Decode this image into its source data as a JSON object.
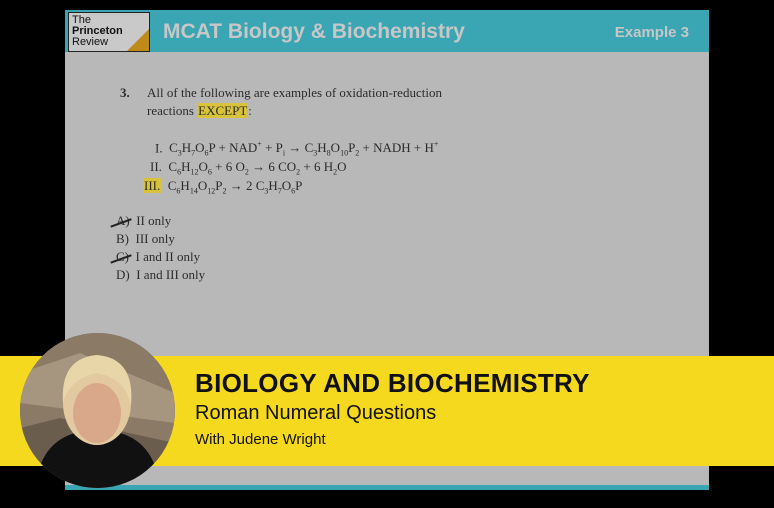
{
  "slide": {
    "logo": {
      "line1": "The",
      "line2": "Princeton",
      "line3": "Review"
    },
    "header_title": "MCAT Biology & Biochemistry",
    "example_label": "Example 3",
    "question": {
      "number": "3.",
      "text_line1": "All of the following are examples of oxidation-reduction",
      "text_line2_pre": "reactions ",
      "text_highlight": "EXCEPT",
      "text_line2_post": ":",
      "reactions": [
        {
          "numeral": "I.",
          "equation": "C3H7O6P + NAD+ + Pi → C3H8O10P2 + NADH + H+"
        },
        {
          "numeral": "II.",
          "equation": "C6H12O6 + 6 O2 → 6 CO2 + 6 H2O"
        },
        {
          "numeral": "III.",
          "equation": "C6H14O12P2 → 2 C3H7O6P",
          "highlighted": true
        }
      ],
      "choices": [
        {
          "letter": "A)",
          "text": "II only",
          "crossed_out": true
        },
        {
          "letter": "B)",
          "text": "III only",
          "crossed_out": false
        },
        {
          "letter": "C)",
          "text": "I and II only",
          "crossed_out": true
        },
        {
          "letter": "D)",
          "text": "I and III only",
          "crossed_out": false
        }
      ]
    }
  },
  "banner": {
    "title": "BIOLOGY AND BIOCHEMISTRY",
    "subtitle": "Roman Numeral Questions",
    "author": "With Judene Wright"
  },
  "colors": {
    "header": "#3aa5b3",
    "banner": "#f5d91e",
    "highlight": "#d8c33a",
    "slide_bg": "#b8b8b8"
  }
}
